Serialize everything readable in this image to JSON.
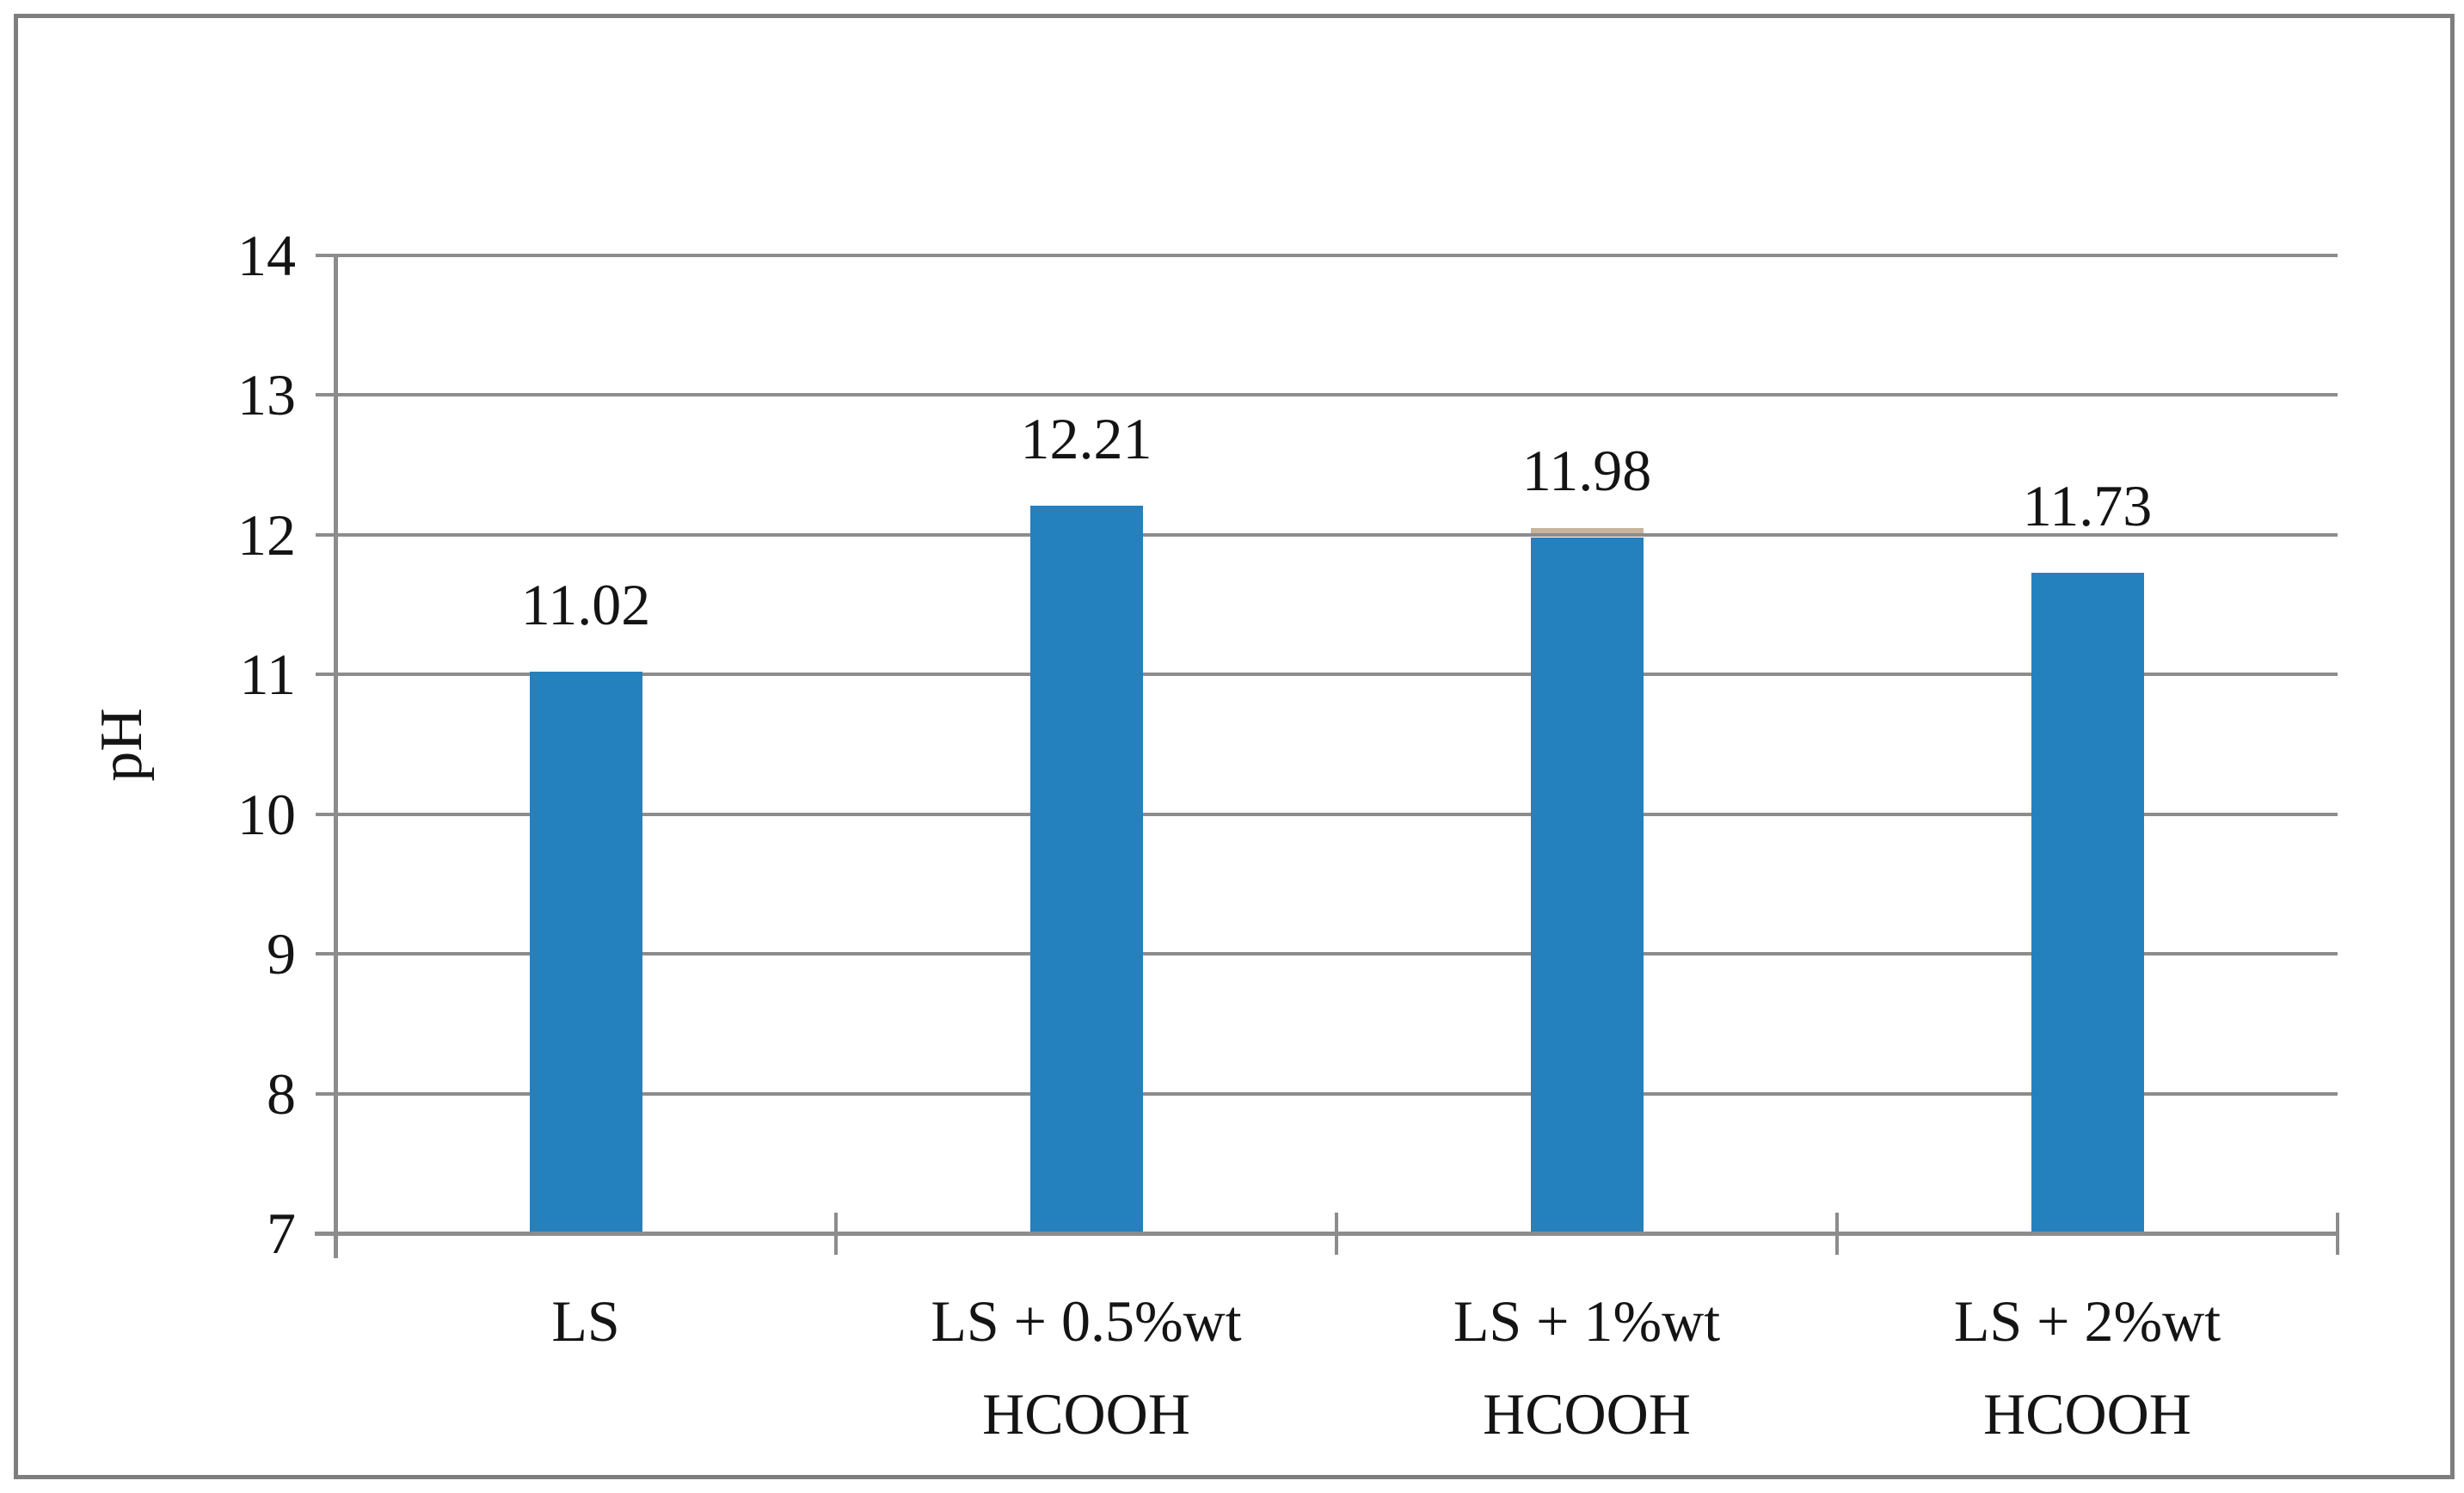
{
  "figure": {
    "background": "#FFFFFF",
    "border_color": "#7E7E7E"
  },
  "chart_data": {
    "type": "bar",
    "title": "",
    "xlabel": "",
    "ylabel": "pH",
    "categories": [
      "LS",
      "LS + 0.5%wt\nHCOOH",
      "LS + 1%wt\nHCOOH",
      "LS + 2%wt\nHCOOH"
    ],
    "values": [
      11.02,
      12.21,
      11.98,
      11.73
    ],
    "data_labels": [
      "11.02",
      "12.21",
      "11.98",
      "11.73"
    ],
    "ylim": [
      7,
      14
    ],
    "yticks": [
      7,
      8,
      9,
      10,
      11,
      12,
      13,
      14
    ],
    "grid": "horizontal-major",
    "legend": "none",
    "bar_color": "#2580BE",
    "grid_color": "#8C8C8C",
    "axis_color": "#8C8C8C",
    "text_color": "#141414",
    "artifact_strip": {
      "category_index": 2,
      "color": "#C8B39C"
    }
  }
}
